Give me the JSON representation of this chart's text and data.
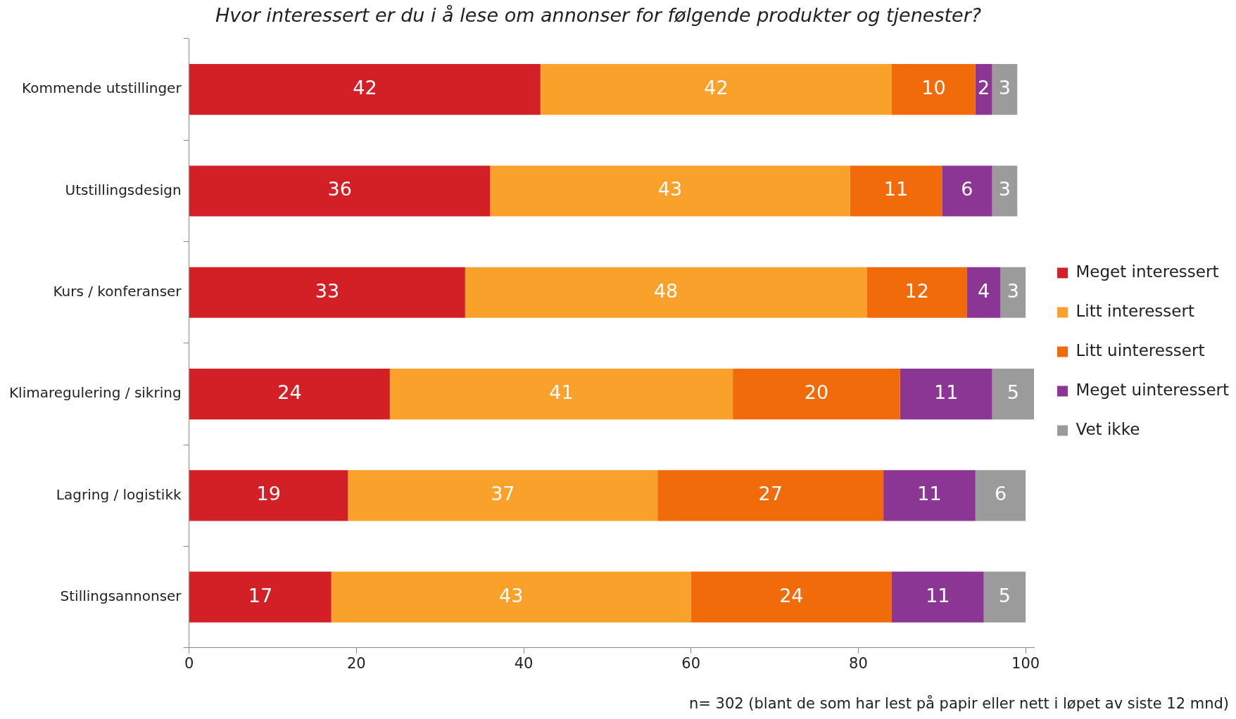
{
  "chart_data": {
    "type": "bar",
    "orientation": "horizontal",
    "stacked": true,
    "title": "Hvor interessert er du i å lese om annonser for følgende produkter og tjenester?",
    "categories": [
      "Kommende utstillinger",
      "Utstillingsdesign",
      "Kurs / konferanser",
      "Klimaregulering / sikring",
      "Lagring / logistikk",
      "Stillingsannonser"
    ],
    "series": [
      {
        "name": "Meget interessert",
        "color": "#d31f26",
        "values": [
          42,
          36,
          33,
          24,
          19,
          17
        ]
      },
      {
        "name": "Litt interessert",
        "color": "#f9a12b",
        "values": [
          42,
          43,
          48,
          41,
          37,
          43
        ]
      },
      {
        "name": "Litt uinteressert",
        "color": "#f26b0a",
        "values": [
          10,
          11,
          12,
          20,
          27,
          24
        ]
      },
      {
        "name": "Meget uinteressert",
        "color": "#8b3594",
        "values": [
          2,
          6,
          4,
          11,
          11,
          11
        ]
      },
      {
        "name": "Vet ikke",
        "color": "#9b9b9b",
        "values": [
          3,
          3,
          3,
          5,
          6,
          5
        ]
      }
    ],
    "xlim": [
      0,
      101
    ],
    "xticks": [
      0,
      20,
      40,
      60,
      80,
      100
    ],
    "data_labels": true,
    "grid": false,
    "legend": "right",
    "annotations": [
      "n= 302 (blant de som har lest på papir eller nett i løpet av siste 12 mnd)"
    ]
  }
}
